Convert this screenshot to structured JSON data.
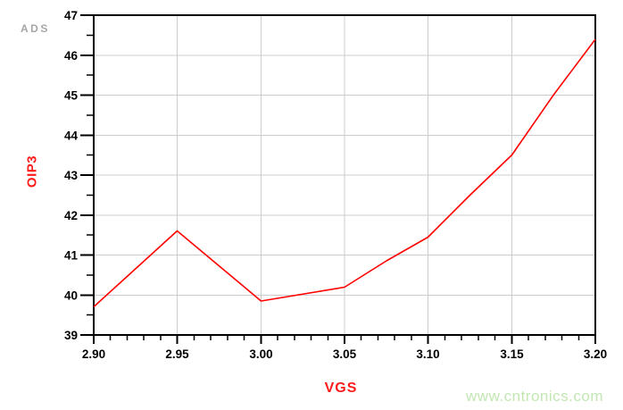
{
  "branding": {
    "logo_text": "ADS",
    "logo_color": "#a6a6a6",
    "watermark_text": "www.cntronics.com",
    "watermark_color": "#c3e7b3"
  },
  "chart_data": {
    "type": "line",
    "title": "",
    "xlabel": "VGS",
    "ylabel": "OIP3",
    "xlim": [
      2.9,
      3.2
    ],
    "ylim": [
      39,
      47
    ],
    "x_ticks": [
      2.9,
      2.95,
      3.0,
      3.05,
      3.1,
      3.15,
      3.2
    ],
    "x_tick_labels": [
      "2.90",
      "2.95",
      "3.00",
      "3.05",
      "3.10",
      "3.15",
      "3.20"
    ],
    "y_ticks": [
      39,
      40,
      41,
      42,
      43,
      44,
      45,
      46,
      47
    ],
    "y_tick_labels": [
      "39",
      "40",
      "41",
      "42",
      "43",
      "44",
      "45",
      "46",
      "47"
    ],
    "x_minor_step": 0.01,
    "y_minor_step": 0.5,
    "grid": true,
    "grid_color": "#cccccc",
    "axis_color": "#000000",
    "legend": "none",
    "series": [
      {
        "name": "OIP3",
        "color": "#ff0000",
        "x": [
          2.9,
          2.95,
          3.0,
          3.05,
          3.075,
          3.1,
          3.125,
          3.15,
          3.175,
          3.2
        ],
        "y": [
          39.7,
          41.6,
          39.85,
          40.2,
          40.85,
          41.45,
          42.5,
          43.5,
          45.0,
          46.4
        ]
      }
    ]
  }
}
